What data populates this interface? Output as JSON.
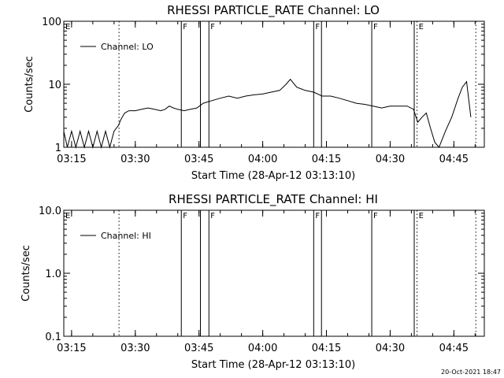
{
  "chart_data": [
    {
      "type": "line",
      "title": "RHESSI PARTICLE_RATE Channel: LO",
      "xlabel": "Start Time (28-Apr-12 03:13:10)",
      "ylabel": "Counts/sec",
      "yscale": "log",
      "ylim": [
        1,
        100
      ],
      "yticks": [
        1,
        10,
        100
      ],
      "ytick_labels": [
        "1",
        "10",
        "100"
      ],
      "xlim": [
        "03:13:10",
        "04:52:10"
      ],
      "xticks": [
        "03:15",
        "03:30",
        "03:45",
        "04:00",
        "04:15",
        "04:30",
        "04:45"
      ],
      "grid": false,
      "legend": {
        "position": "top-left",
        "entries": [
          "Channel: LO"
        ]
      },
      "markers": [
        {
          "time": "03:13:10",
          "label": "E",
          "style": "solid"
        },
        {
          "time": "03:26:10",
          "label": "",
          "style": "dotted"
        },
        {
          "time": "03:40:50",
          "label": "F",
          "style": "solid"
        },
        {
          "time": "03:45:20",
          "label": "",
          "style": "solid"
        },
        {
          "time": "03:47:20",
          "label": "F",
          "style": "solid"
        },
        {
          "time": "04:12:00",
          "label": "F",
          "style": "solid"
        },
        {
          "time": "04:13:50",
          "label": "",
          "style": "solid"
        },
        {
          "time": "04:25:40",
          "label": "F",
          "style": "solid"
        },
        {
          "time": "04:35:40",
          "label": "",
          "style": "solid"
        },
        {
          "time": "04:36:20",
          "label": "E",
          "style": "dotted"
        },
        {
          "time": "04:50:10",
          "label": "",
          "style": "dotted"
        }
      ],
      "series": [
        {
          "name": "Channel: LO",
          "x": [
            "03:13:10",
            "03:14:00",
            "03:15:00",
            "03:16:00",
            "03:17:00",
            "03:18:00",
            "03:19:00",
            "03:20:00",
            "03:21:00",
            "03:22:00",
            "03:23:00",
            "03:24:00",
            "03:25:00",
            "03:26:00",
            "03:26:40",
            "03:27:30",
            "03:28:30",
            "03:30:00",
            "03:31:30",
            "03:33:00",
            "03:34:30",
            "03:36:00",
            "03:37:00",
            "03:38:00",
            "03:39:00",
            "03:40:00",
            "03:41:30",
            "03:43:00",
            "03:44:30",
            "03:46:00",
            "03:48:00",
            "03:50:00",
            "03:52:00",
            "03:54:00",
            "03:56:00",
            "03:58:00",
            "04:00:00",
            "04:02:00",
            "04:04:00",
            "04:05:30",
            "04:06:30",
            "04:08:00",
            "04:10:00",
            "04:12:00",
            "04:14:00",
            "04:16:00",
            "04:18:00",
            "04:20:00",
            "04:22:00",
            "04:24:00",
            "04:26:00",
            "04:28:00",
            "04:30:00",
            "04:32:00",
            "04:34:00",
            "04:35:30",
            "04:36:30",
            "04:37:30",
            "04:38:30",
            "04:39:30",
            "04:40:30",
            "04:41:30",
            "04:43:00",
            "04:44:30",
            "04:46:00",
            "04:47:00",
            "04:48:00",
            "04:49:00"
          ],
          "values": [
            1.8,
            1.0,
            1.8,
            1.0,
            1.8,
            1.0,
            1.8,
            1.0,
            1.8,
            1.0,
            1.8,
            1.0,
            1.8,
            2.2,
            2.8,
            3.5,
            3.8,
            3.8,
            4.0,
            4.2,
            4.0,
            3.8,
            4.0,
            4.5,
            4.2,
            4.0,
            3.8,
            4.0,
            4.2,
            5.0,
            5.5,
            6.0,
            6.5,
            6.0,
            6.5,
            6.8,
            7.0,
            7.5,
            8.0,
            10.0,
            12.0,
            9.0,
            8.0,
            7.5,
            6.5,
            6.5,
            6.0,
            5.5,
            5.0,
            4.8,
            4.5,
            4.2,
            4.5,
            4.5,
            4.5,
            4.0,
            2.5,
            3.0,
            3.5,
            2.0,
            1.2,
            1.0,
            1.8,
            3.0,
            6.0,
            9.0,
            11.0,
            3.0
          ]
        }
      ]
    },
    {
      "type": "line",
      "title": "RHESSI PARTICLE_RATE Channel: HI",
      "xlabel": "Start Time (28-Apr-12 03:13:10)",
      "ylabel": "Counts/sec",
      "yscale": "log",
      "ylim": [
        0.1,
        10
      ],
      "yticks": [
        0.1,
        1,
        10
      ],
      "ytick_labels": [
        "0.1",
        "1.0",
        "10.0"
      ],
      "xlim": [
        "03:13:10",
        "04:52:10"
      ],
      "xticks": [
        "03:15",
        "03:30",
        "03:45",
        "04:00",
        "04:15",
        "04:30",
        "04:45"
      ],
      "grid": false,
      "legend": {
        "position": "top-left",
        "entries": [
          "Channel: HI"
        ]
      },
      "markers": [
        {
          "time": "03:13:10",
          "label": "E",
          "style": "solid"
        },
        {
          "time": "03:26:10",
          "label": "",
          "style": "dotted"
        },
        {
          "time": "03:40:50",
          "label": "F",
          "style": "solid"
        },
        {
          "time": "03:45:20",
          "label": "",
          "style": "solid"
        },
        {
          "time": "03:47:20",
          "label": "F",
          "style": "solid"
        },
        {
          "time": "04:12:00",
          "label": "F",
          "style": "solid"
        },
        {
          "time": "04:13:50",
          "label": "",
          "style": "solid"
        },
        {
          "time": "04:25:40",
          "label": "F",
          "style": "solid"
        },
        {
          "time": "04:35:40",
          "label": "",
          "style": "solid"
        },
        {
          "time": "04:36:20",
          "label": "E",
          "style": "dotted"
        },
        {
          "time": "04:50:10",
          "label": "",
          "style": "dotted"
        }
      ],
      "series": [
        {
          "name": "Channel: HI",
          "x": [],
          "values": []
        }
      ]
    }
  ],
  "footer": {
    "timestamp": "20-Oct-2021 18:47"
  }
}
